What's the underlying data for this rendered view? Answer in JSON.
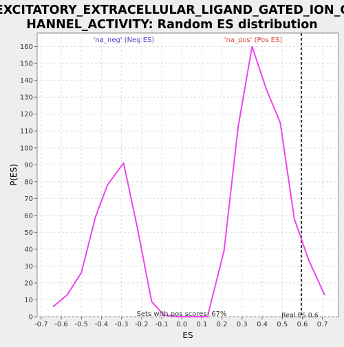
{
  "chart_data": {
    "type": "line",
    "title_line1": "EXCITATORY_EXTRACELLULAR_LIGAND_GATED_ION_C",
    "title_line2": "HANNEL_ACTIVITY: Random ES distribution",
    "xlabel": "ES",
    "ylabel": "P(ES)",
    "xlim": [
      -0.72,
      0.78
    ],
    "ylim": [
      0,
      168
    ],
    "x_ticks": [
      "-0.7",
      "-0.6",
      "-0.5",
      "-0.4",
      "-0.3",
      "-0.2",
      "-0.1",
      "0.0",
      "0.1",
      "0.2",
      "0.3",
      "0.4",
      "0.5",
      "0.6",
      "0.7"
    ],
    "x_tick_values": [
      -0.7,
      -0.6,
      -0.5,
      -0.4,
      -0.3,
      -0.2,
      -0.1,
      0.0,
      0.1,
      0.2,
      0.3,
      0.4,
      0.5,
      0.6,
      0.7
    ],
    "y_ticks": [
      "0",
      "10",
      "20",
      "30",
      "40",
      "50",
      "60",
      "70",
      "80",
      "90",
      "100",
      "110",
      "120",
      "130",
      "140",
      "150",
      "160"
    ],
    "y_tick_values": [
      0,
      10,
      20,
      30,
      40,
      50,
      60,
      70,
      80,
      90,
      100,
      110,
      120,
      130,
      140,
      150,
      160
    ],
    "grid": true,
    "series": [
      {
        "name": "'na_neg' (Neg ES)",
        "color": "#ee44ee",
        "x": [
          -0.64,
          -0.57,
          -0.5,
          -0.43,
          -0.37,
          -0.29,
          -0.22,
          -0.15,
          -0.09,
          -0.02,
          0.05,
          0.13
        ],
        "y": [
          6,
          13,
          26,
          59,
          78,
          91,
          52,
          9,
          1,
          0,
          0,
          0
        ]
      },
      {
        "name": "'na_pos' (Pos ES)",
        "color": "#ee44ee",
        "x": [
          0.13,
          0.21,
          0.28,
          0.35,
          0.42,
          0.49,
          0.56,
          0.63,
          0.71
        ],
        "y": [
          1,
          39,
          112,
          160,
          135,
          115,
          58,
          34,
          13
        ]
      }
    ],
    "legend": [
      {
        "label": "'na_neg' (Neg ES)",
        "color": "#4444cc"
      },
      {
        "label": "'na_pos' (Pos ES)",
        "color": "#dd4444"
      }
    ],
    "reference_line": {
      "x": 0.595,
      "label": "Real ES 0.6"
    },
    "annotation": "Sets with pos scores: 67%"
  }
}
